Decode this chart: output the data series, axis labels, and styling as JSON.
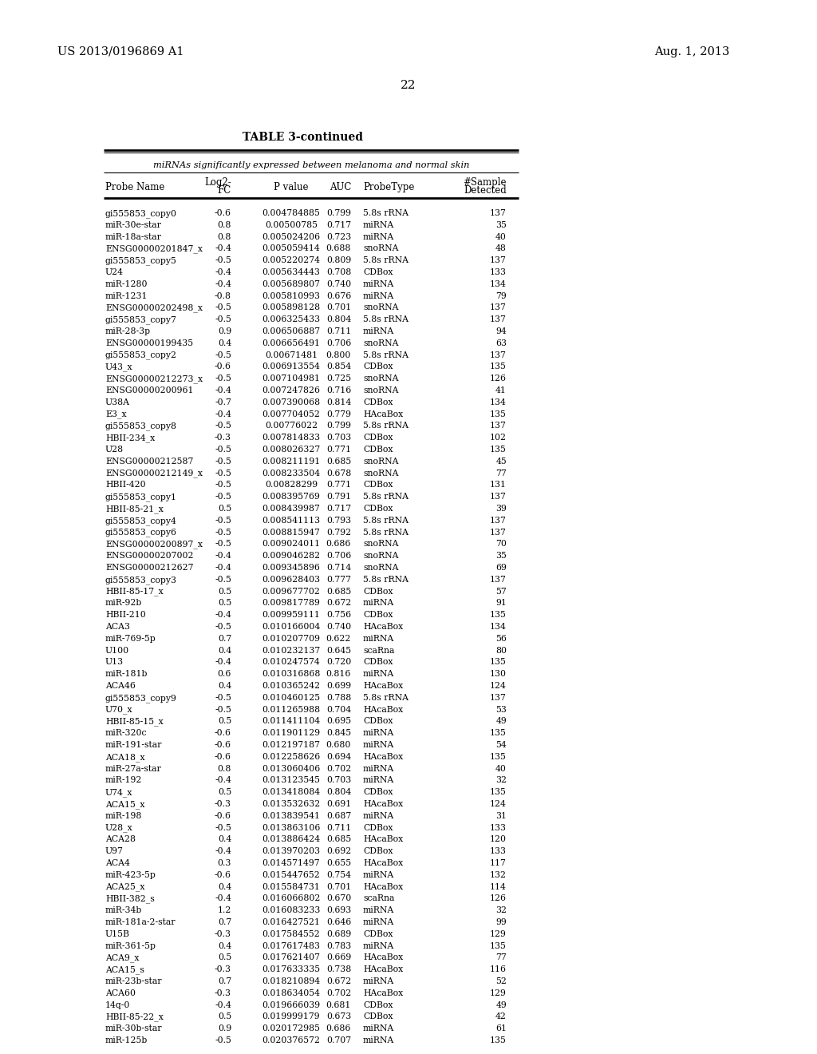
{
  "patent_left": "US 2013/0196869 A1",
  "patent_right": "Aug. 1, 2013",
  "page_number": "22",
  "table_title": "TABLE 3-continued",
  "table_subtitle": "miRNAs significantly expressed between melanoma and normal skin",
  "rows": [
    [
      "gi555853_copy0",
      "-0.6",
      "0.004784885",
      "0.799",
      "5.8s rRNA",
      "137"
    ],
    [
      "miR-30e-star",
      "0.8",
      "0.00500785",
      "0.717",
      "miRNA",
      "35"
    ],
    [
      "miR-18a-star",
      "0.8",
      "0.005024206",
      "0.723",
      "miRNA",
      "40"
    ],
    [
      "ENSG00000201847_x",
      "-0.4",
      "0.005059414",
      "0.688",
      "snoRNA",
      "48"
    ],
    [
      "gi555853_copy5",
      "-0.5",
      "0.005220274",
      "0.809",
      "5.8s rRNA",
      "137"
    ],
    [
      "U24",
      "-0.4",
      "0.005634443",
      "0.708",
      "CDBox",
      "133"
    ],
    [
      "miR-1280",
      "-0.4",
      "0.005689807",
      "0.740",
      "miRNA",
      "134"
    ],
    [
      "miR-1231",
      "-0.8",
      "0.005810993",
      "0.676",
      "miRNA",
      "79"
    ],
    [
      "ENSG00000202498_x",
      "-0.5",
      "0.005898128",
      "0.701",
      "snoRNA",
      "137"
    ],
    [
      "gi555853_copy7",
      "-0.5",
      "0.006325433",
      "0.804",
      "5.8s rRNA",
      "137"
    ],
    [
      "miR-28-3p",
      "0.9",
      "0.006506887",
      "0.711",
      "miRNA",
      "94"
    ],
    [
      "ENSG00000199435",
      "0.4",
      "0.006656491",
      "0.706",
      "snoRNA",
      "63"
    ],
    [
      "gi555853_copy2",
      "-0.5",
      "0.00671481",
      "0.800",
      "5.8s rRNA",
      "137"
    ],
    [
      "U43_x",
      "-0.6",
      "0.006913554",
      "0.854",
      "CDBox",
      "135"
    ],
    [
      "ENSG00000212273_x",
      "-0.5",
      "0.007104981",
      "0.725",
      "snoRNA",
      "126"
    ],
    [
      "ENSG00000200961",
      "-0.4",
      "0.007247826",
      "0.716",
      "snoRNA",
      "41"
    ],
    [
      "U38A",
      "-0.7",
      "0.007390068",
      "0.814",
      "CDBox",
      "134"
    ],
    [
      "E3_x",
      "-0.4",
      "0.007704052",
      "0.779",
      "HAcaBox",
      "135"
    ],
    [
      "gi555853_copy8",
      "-0.5",
      "0.00776022",
      "0.799",
      "5.8s rRNA",
      "137"
    ],
    [
      "HBII-234_x",
      "-0.3",
      "0.007814833",
      "0.703",
      "CDBox",
      "102"
    ],
    [
      "U28",
      "-0.5",
      "0.008026327",
      "0.771",
      "CDBox",
      "135"
    ],
    [
      "ENSG00000212587",
      "-0.5",
      "0.008211191",
      "0.685",
      "snoRNA",
      "45"
    ],
    [
      "ENSG00000212149_x",
      "-0.5",
      "0.008233504",
      "0.678",
      "snoRNA",
      "77"
    ],
    [
      "HBII-420",
      "-0.5",
      "0.00828299",
      "0.771",
      "CDBox",
      "131"
    ],
    [
      "gi555853_copy1",
      "-0.5",
      "0.008395769",
      "0.791",
      "5.8s rRNA",
      "137"
    ],
    [
      "HBII-85-21_x",
      "0.5",
      "0.008439987",
      "0.717",
      "CDBox",
      "39"
    ],
    [
      "gi555853_copy4",
      "-0.5",
      "0.008541113",
      "0.793",
      "5.8s rRNA",
      "137"
    ],
    [
      "gi555853_copy6",
      "-0.5",
      "0.008815947",
      "0.792",
      "5.8s rRNA",
      "137"
    ],
    [
      "ENSG00000200897_x",
      "-0.5",
      "0.009024011",
      "0.686",
      "snoRNA",
      "70"
    ],
    [
      "ENSG00000207002",
      "-0.4",
      "0.009046282",
      "0.706",
      "snoRNA",
      "35"
    ],
    [
      "ENSG00000212627",
      "-0.4",
      "0.009345896",
      "0.714",
      "snoRNA",
      "69"
    ],
    [
      "gi555853_copy3",
      "-0.5",
      "0.009628403",
      "0.777",
      "5.8s rRNA",
      "137"
    ],
    [
      "HBII-85-17_x",
      "0.5",
      "0.009677702",
      "0.685",
      "CDBox",
      "57"
    ],
    [
      "miR-92b",
      "0.5",
      "0.009817789",
      "0.672",
      "miRNA",
      "91"
    ],
    [
      "HBII-210",
      "-0.4",
      "0.009959111",
      "0.756",
      "CDBox",
      "135"
    ],
    [
      "ACA3",
      "-0.5",
      "0.010166004",
      "0.740",
      "HAcaBox",
      "134"
    ],
    [
      "miR-769-5p",
      "0.7",
      "0.010207709",
      "0.622",
      "miRNA",
      "56"
    ],
    [
      "U100",
      "0.4",
      "0.010232137",
      "0.645",
      "scaRna",
      "80"
    ],
    [
      "U13",
      "-0.4",
      "0.010247574",
      "0.720",
      "CDBox",
      "135"
    ],
    [
      "miR-181b",
      "0.6",
      "0.010316868",
      "0.816",
      "miRNA",
      "130"
    ],
    [
      "ACA46",
      "0.4",
      "0.010365242",
      "0.699",
      "HAcaBox",
      "124"
    ],
    [
      "gi555853_copy9",
      "-0.5",
      "0.010460125",
      "0.788",
      "5.8s rRNA",
      "137"
    ],
    [
      "U70_x",
      "-0.5",
      "0.011265988",
      "0.704",
      "HAcaBox",
      "53"
    ],
    [
      "HBII-85-15_x",
      "0.5",
      "0.011411104",
      "0.695",
      "CDBox",
      "49"
    ],
    [
      "miR-320c",
      "-0.6",
      "0.011901129",
      "0.845",
      "miRNA",
      "135"
    ],
    [
      "miR-191-star",
      "-0.6",
      "0.012197187",
      "0.680",
      "miRNA",
      "54"
    ],
    [
      "ACA18_x",
      "-0.6",
      "0.012258626",
      "0.694",
      "HAcaBox",
      "135"
    ],
    [
      "miR-27a-star",
      "0.8",
      "0.013060406",
      "0.702",
      "miRNA",
      "40"
    ],
    [
      "miR-192",
      "-0.4",
      "0.013123545",
      "0.703",
      "miRNA",
      "32"
    ],
    [
      "U74_x",
      "0.5",
      "0.013418084",
      "0.804",
      "CDBox",
      "135"
    ],
    [
      "ACA15_x",
      "-0.3",
      "0.013532632",
      "0.691",
      "HAcaBox",
      "124"
    ],
    [
      "miR-198",
      "-0.6",
      "0.013839541",
      "0.687",
      "miRNA",
      "31"
    ],
    [
      "U28_x",
      "-0.5",
      "0.013863106",
      "0.711",
      "CDBox",
      "133"
    ],
    [
      "ACA28",
      "0.4",
      "0.013886424",
      "0.685",
      "HAcaBox",
      "120"
    ],
    [
      "U97",
      "-0.4",
      "0.013970203",
      "0.692",
      "CDBox",
      "133"
    ],
    [
      "ACA4",
      "0.3",
      "0.014571497",
      "0.655",
      "HAcaBox",
      "117"
    ],
    [
      "miR-423-5p",
      "-0.6",
      "0.015447652",
      "0.754",
      "miRNA",
      "132"
    ],
    [
      "ACA25_x",
      "0.4",
      "0.015584731",
      "0.701",
      "HAcaBox",
      "114"
    ],
    [
      "HBII-382_s",
      "-0.4",
      "0.016066802",
      "0.670",
      "scaRna",
      "126"
    ],
    [
      "miR-34b",
      "1.2",
      "0.016083233",
      "0.693",
      "miRNA",
      "32"
    ],
    [
      "miR-181a-2-star",
      "0.7",
      "0.016427521",
      "0.646",
      "miRNA",
      "99"
    ],
    [
      "U15B",
      "-0.3",
      "0.017584552",
      "0.689",
      "CDBox",
      "129"
    ],
    [
      "miR-361-5p",
      "0.4",
      "0.017617483",
      "0.783",
      "miRNA",
      "135"
    ],
    [
      "ACA9_x",
      "0.5",
      "0.017621407",
      "0.669",
      "HAcaBox",
      "77"
    ],
    [
      "ACA15_s",
      "-0.3",
      "0.017633335",
      "0.738",
      "HAcaBox",
      "116"
    ],
    [
      "miR-23b-star",
      "0.7",
      "0.018210894",
      "0.672",
      "miRNA",
      "52"
    ],
    [
      "ACA60",
      "-0.3",
      "0.018634054",
      "0.702",
      "HAcaBox",
      "129"
    ],
    [
      "14q-0",
      "-0.4",
      "0.019666039",
      "0.681",
      "CDBox",
      "49"
    ],
    [
      "HBII-85-22_x",
      "0.5",
      "0.019999179",
      "0.673",
      "CDBox",
      "42"
    ],
    [
      "miR-30b-star",
      "0.9",
      "0.020172985",
      "0.686",
      "miRNA",
      "61"
    ],
    [
      "miR-125b",
      "-0.5",
      "0.020376572",
      "0.707",
      "miRNA",
      "135"
    ]
  ]
}
